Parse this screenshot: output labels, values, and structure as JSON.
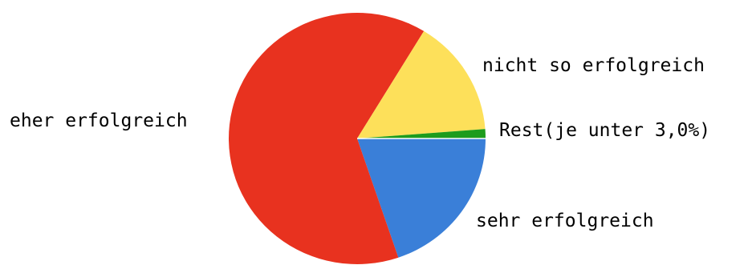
{
  "chart_data": {
    "type": "pie",
    "title": "",
    "slices": [
      {
        "label": "sehr erfolgreich",
        "value": 19.8,
        "color": "#3a7fd8"
      },
      {
        "label": "eher erfolgreich",
        "value": 63.9,
        "color": "#e8321f"
      },
      {
        "label": "nicht so erfolgreich",
        "value": 15.1,
        "color": "#fde05a"
      },
      {
        "label": "Rest(je unter 3,0%)",
        "value": 1.2,
        "color": "#1d9c1d"
      }
    ],
    "start_angle_deg": 0,
    "direction": "clockwise",
    "legend": "none"
  }
}
